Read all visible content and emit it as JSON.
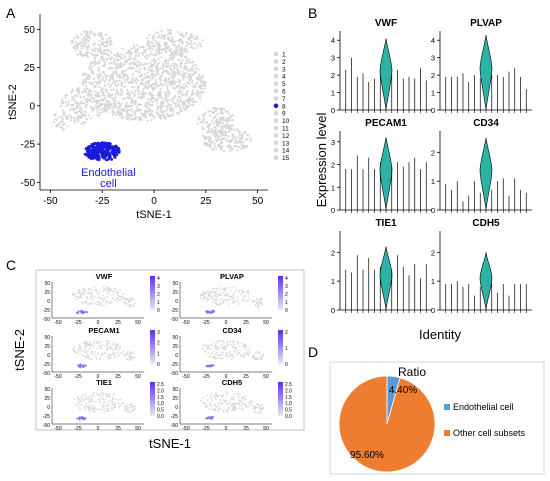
{
  "panel_labels": {
    "a": "A",
    "b": "B",
    "c": "C",
    "d": "D"
  },
  "colors": {
    "accent_blue": "#1a1adb",
    "teal": "#2bb3a5",
    "orange": "#ed7d31",
    "pie_blue": "#5b9bd5",
    "grey": "#d6d6d6"
  },
  "chart_data": [
    {
      "panel": "A",
      "type": "scatter",
      "xlabel": "tSNE-1",
      "ylabel": "tSNE-2",
      "x_ticks": [
        -50,
        -25,
        0,
        25,
        50
      ],
      "y_ticks": [
        50,
        25,
        0,
        -25,
        -50
      ],
      "xlim": [
        -55,
        55
      ],
      "ylim": [
        -55,
        60
      ],
      "legend": [
        "1",
        "2",
        "3",
        "4",
        "5",
        "6",
        "7",
        "8",
        "9",
        "10",
        "11",
        "12",
        "13",
        "14",
        "15"
      ],
      "highlight_legend_index": 7,
      "annotation": [
        "Endothelial",
        "cell"
      ]
    },
    {
      "panel": "B",
      "type": "violin",
      "ylabel": "Expression level",
      "xlabel": "Identity",
      "genes": [
        "VWF",
        "PLVAP",
        "PECAM1",
        "CD34",
        "TIE1",
        "CDH5"
      ],
      "y_ticks": [
        [
          0,
          1,
          2,
          3,
          4
        ],
        [
          0,
          1,
          2,
          3,
          4
        ],
        [
          0,
          1,
          2,
          3
        ],
        [
          0,
          1,
          2
        ],
        [
          0,
          1,
          2
        ],
        [
          0,
          1,
          2
        ]
      ],
      "ymax": [
        4.3,
        4.3,
        3.3,
        2.6,
        2.6,
        2.6
      ],
      "violin_cluster": 8,
      "spike_heights": [
        [
          2.3,
          3.0,
          1.9,
          2.1,
          1.6,
          1.8,
          2.3,
          4.1,
          2.0,
          2.3,
          1.8,
          1.9,
          1.8,
          2.4,
          1.7
        ],
        [
          1.9,
          1.9,
          1.9,
          2.1,
          1.6,
          2.0,
          1.8,
          4.3,
          2.0,
          2.0,
          1.9,
          2.2,
          2.4,
          1.9,
          1.2
        ],
        [
          1.8,
          1.8,
          2.4,
          1.8,
          2.3,
          1.8,
          2.1,
          3.2,
          1.9,
          2.1,
          1.9,
          2.1,
          2.3,
          1.8,
          2.1
        ],
        [
          0.9,
          0.7,
          1.0,
          0.3,
          0.5,
          1.0,
          0.6,
          2.5,
          0.7,
          1.0,
          1.1,
          0.5,
          1.1,
          0.7,
          0.6
        ],
        [
          1.4,
          1.3,
          1.9,
          1.4,
          1.8,
          1.4,
          1.5,
          2.2,
          1.4,
          1.9,
          1.5,
          1.2,
          1.6,
          1.1,
          1.6
        ],
        [
          0.9,
          0.9,
          1.0,
          0.8,
          0.9,
          0.5,
          0.8,
          2.0,
          0.9,
          0.6,
          0.9,
          0.5,
          0.9,
          0.9,
          0.9
        ]
      ]
    },
    {
      "panel": "C",
      "type": "feature_scatter",
      "xlabel": "tSNE-1",
      "ylabel": "tSNE-2",
      "x_ticks": [
        "-50",
        "-25",
        "0",
        "25",
        "50"
      ],
      "y_ticks": [
        "50",
        "25",
        "0",
        "-25",
        "-50"
      ],
      "genes": [
        "VWF",
        "PLVAP",
        "PECAM1",
        "CD34",
        "TIE1",
        "CDH5"
      ],
      "colorbar_ticks": [
        [
          "4",
          "3",
          "2",
          "1",
          "0"
        ],
        [
          "4",
          "3",
          "2",
          "1",
          "0"
        ],
        [
          "3",
          "2",
          "1",
          "0"
        ],
        [
          "2",
          "1",
          "0"
        ],
        [
          "2.5",
          "2.0",
          "1.5",
          "1.0",
          "0.5",
          "0.0"
        ],
        [
          "2.5",
          "2.0",
          "1.5",
          "1.0",
          "0.5",
          "0.0"
        ]
      ]
    },
    {
      "panel": "D",
      "type": "pie",
      "title": "Ratio",
      "slices": [
        {
          "label": "Endothelial cell",
          "value": 4.4,
          "display": "4.40%"
        },
        {
          "label": "Other cell subsets",
          "value": 95.6,
          "display": "95.60%"
        }
      ],
      "legend_position": "right"
    }
  ]
}
